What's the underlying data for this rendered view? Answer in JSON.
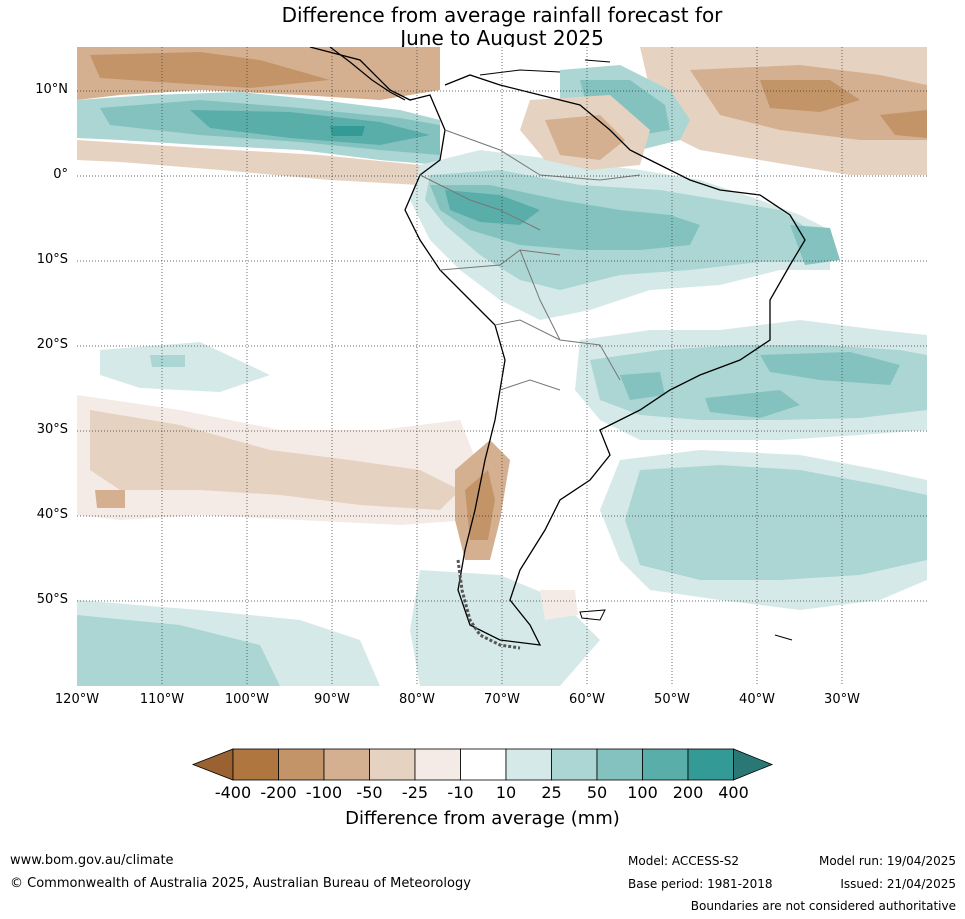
{
  "title_line1": "Difference from average rainfall forecast for",
  "title_line2": "June to August 2025",
  "lat_labels": [
    "10°N",
    "0°",
    "10°S",
    "20°S",
    "30°S",
    "40°S",
    "50°S"
  ],
  "lon_labels": [
    "120°W",
    "110°W",
    "100°W",
    "90°W",
    "80°W",
    "70°W",
    "60°W",
    "50°W",
    "40°W",
    "30°W"
  ],
  "colorbar": {
    "ticks": [
      "-400",
      "-200",
      "-100",
      "-50",
      "-25",
      "-10",
      "10",
      "25",
      "50",
      "100",
      "200",
      "400"
    ],
    "colors": [
      "#9b6231",
      "#b0763f",
      "#c29468",
      "#d4b090",
      "#e6d2c1",
      "#f5ebe6",
      "#ffffff",
      "#d5eae8",
      "#abd6d4",
      "#84c2bf",
      "#5aaeaa",
      "#339a95",
      "#2a7876"
    ],
    "label": "Difference from average (mm)"
  },
  "footer": {
    "website": "www.bom.gov.au/climate",
    "copyright": "© Commonwealth of Australia 2025, Australian Bureau of Meteorology",
    "model": "Model: ACCESS-S2",
    "base_period": "Base period: 1981-2018",
    "model_run": "Model run: 19/04/2025",
    "issued": "Issued: 21/04/2025",
    "disclaimer": "Boundaries are not considered authoritative"
  }
}
